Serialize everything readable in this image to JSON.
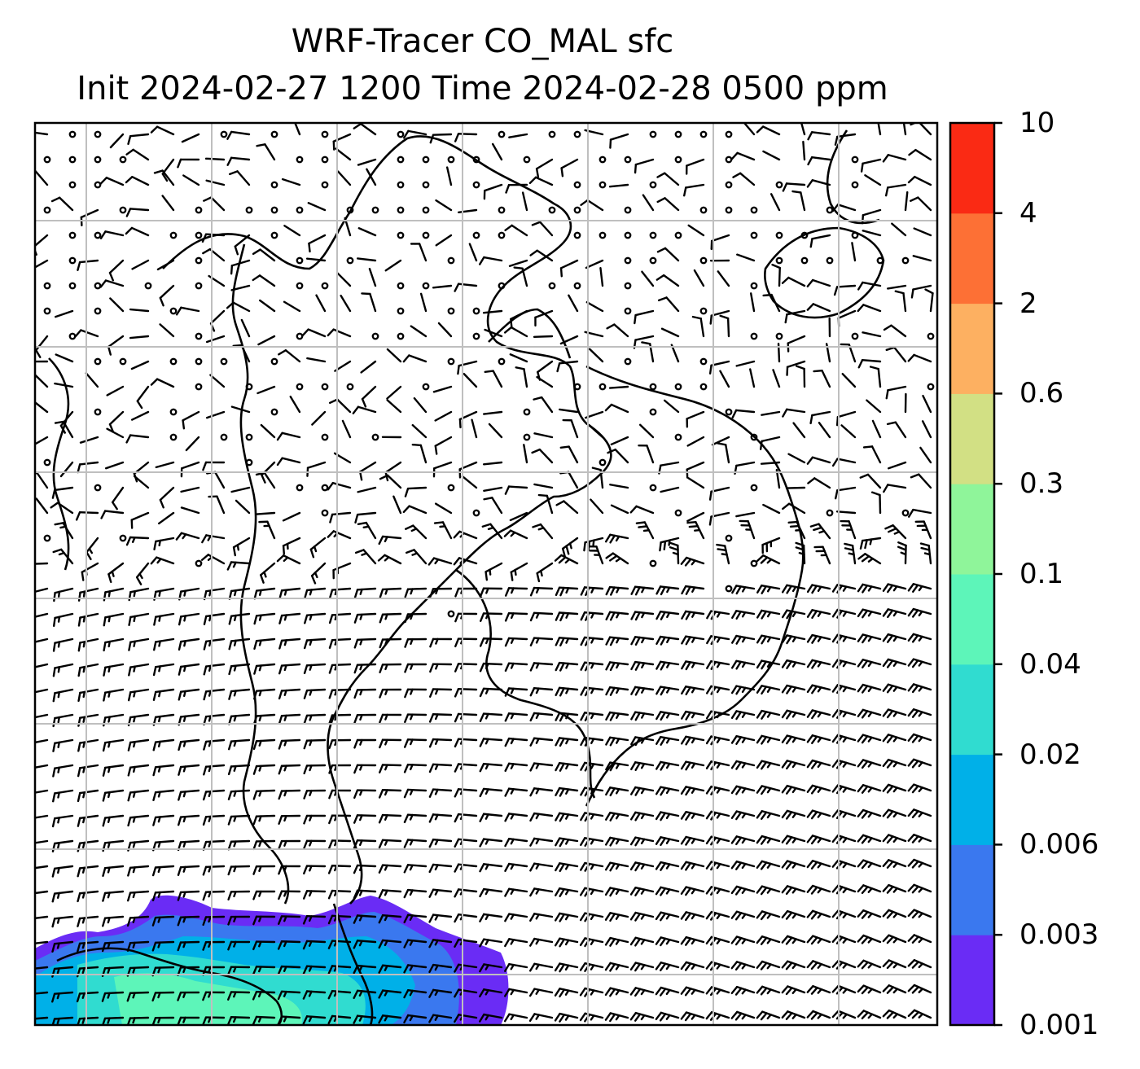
{
  "title": {
    "line1": "WRF-Tracer CO_MAL sfc",
    "line2": "Init 2024-02-27 1200 Time 2024-02-28 0500 ppm"
  },
  "colorbar": {
    "levels": [
      "0.001",
      "0.003",
      "0.006",
      "0.02",
      "0.04",
      "0.1",
      "0.3",
      "0.6",
      "2",
      "4",
      "10"
    ],
    "colors": [
      "#6a2cf5",
      "#3a78ef",
      "#00b0e8",
      "#30dcd0",
      "#5df5b9",
      "#8ff59a",
      "#d2e084",
      "#fdb061",
      "#fd7035",
      "#fa2a14"
    ]
  },
  "map": {
    "tracer_fill_colors": [
      "#6a2cf5",
      "#3a78ef",
      "#00b0e8",
      "#30dcd0",
      "#5df5b9"
    ],
    "gridline_color": "#bfbfbf",
    "coastline_color": "#000000"
  }
}
